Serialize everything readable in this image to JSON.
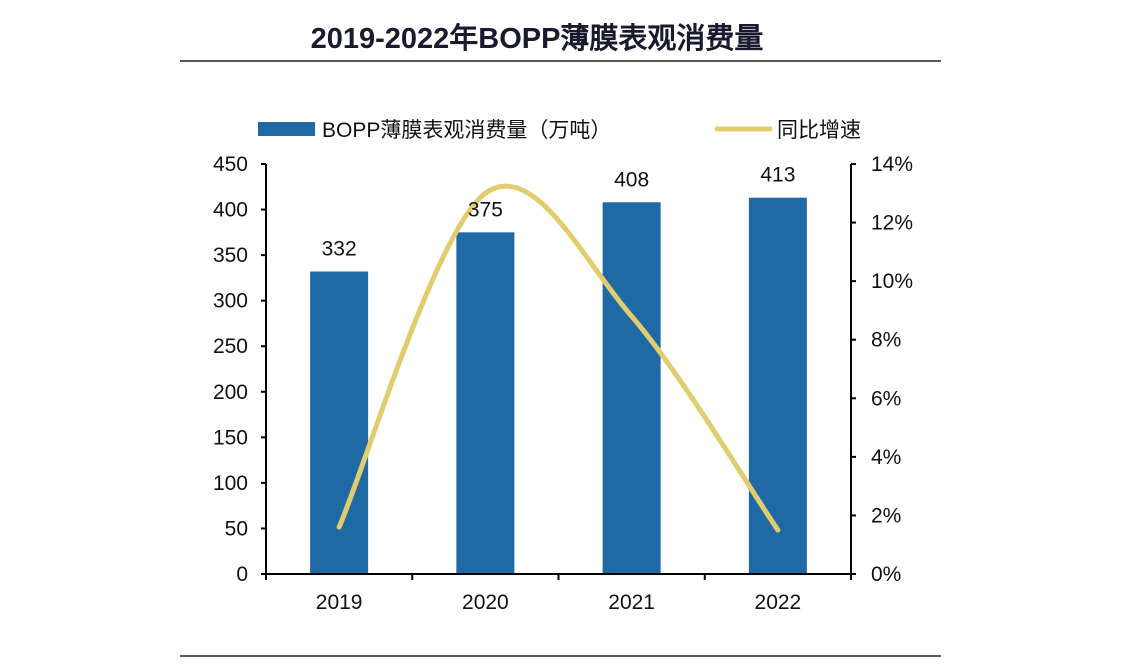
{
  "chart_data": {
    "type": "bar+line",
    "title": "2019-2022年BOPP薄膜表观消费量",
    "categories": [
      "2019",
      "2020",
      "2021",
      "2022"
    ],
    "series": [
      {
        "name": "BOPP薄膜表观消费量（万吨）",
        "type": "bar",
        "axis": "left",
        "values": [
          332,
          375,
          408,
          413
        ],
        "color": "#1f69a4"
      },
      {
        "name": "同比增速",
        "type": "line",
        "axis": "right",
        "values": [
          1.6,
          13.0,
          8.8,
          1.5
        ],
        "color": "#e1cc6e",
        "smooth": true
      }
    ],
    "left_axis": {
      "ylim": [
        0,
        450
      ],
      "ticks": [
        "0",
        "50",
        "100",
        "150",
        "200",
        "250",
        "300",
        "350",
        "400",
        "450"
      ]
    },
    "right_axis": {
      "ylim": [
        0,
        14
      ],
      "ticks": [
        "0%",
        "2%",
        "4%",
        "6%",
        "8%",
        "10%",
        "12%",
        "14%"
      ]
    },
    "data_labels": [
      "332",
      "375",
      "408",
      "413"
    ],
    "legend": "top",
    "grid": false
  }
}
